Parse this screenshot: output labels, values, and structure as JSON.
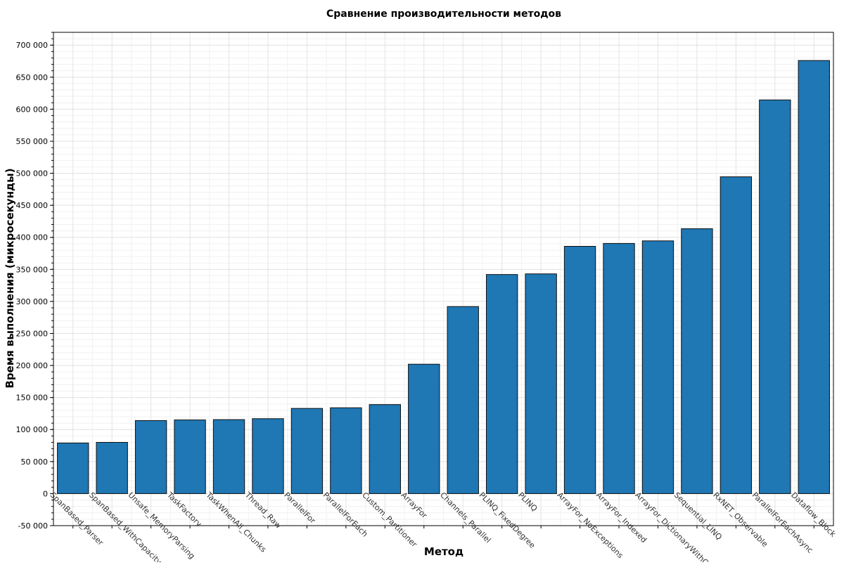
{
  "chart_data": {
    "type": "bar",
    "title": "Сравнение производительности методов",
    "xlabel": "Метод",
    "ylabel": "Время выполнения (микросекунды)",
    "categories": [
      "SpanBased_Parser",
      "SpanBased_WithCapacity",
      "Unsafe_MemoryParsing",
      "TaskFactory",
      "TaskWhenAll_Chunks",
      "Thread_Raw",
      "ParallelFor",
      "ParallelForEach",
      "Custom_Partitioner",
      "ArrayFor",
      "Channels_Parallel",
      "PLINQ_FixedDegree",
      "PLINQ",
      "ArrayFor_NoExceptions",
      "ArrayFor_Indexed",
      "ArrayFor_DictionaryWithCapacity",
      "Sequential_LINQ",
      "RxNET_Observable",
      "ParallelForEachAsync",
      "Dataflow_Block"
    ],
    "values": [
      79000,
      80000,
      114000,
      115000,
      115500,
      117000,
      133000,
      134000,
      139000,
      202000,
      292000,
      342000,
      343000,
      386000,
      390500,
      394500,
      413500,
      494500,
      614500,
      676000
    ],
    "ylim": [
      -50000,
      720000
    ],
    "yticks": [
      -50000,
      0,
      50000,
      100000,
      150000,
      200000,
      250000,
      300000,
      350000,
      400000,
      450000,
      500000,
      550000,
      600000,
      650000,
      700000
    ],
    "ytick_labels": [
      "-50 000",
      "0",
      "50 000",
      "100 000",
      "150 000",
      "200 000",
      "250 000",
      "300 000",
      "350 000",
      "400 000",
      "450 000",
      "500 000",
      "550 000",
      "600 000",
      "650 000",
      "700 000"
    ],
    "grid": true,
    "legend": "none",
    "bar_color": "#1f77b4",
    "bar_edge_color": "#111111",
    "grid_color": "#e3e3e3"
  }
}
